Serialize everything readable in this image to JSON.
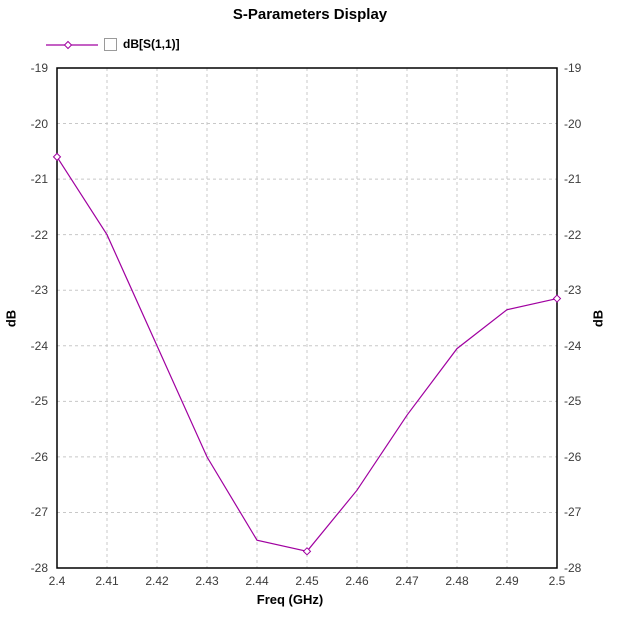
{
  "title": "S-Parameters Display",
  "legend": {
    "label": "dB[S(1,1)]",
    "checkbox_checked": false
  },
  "chart_data": {
    "type": "line",
    "title": "S-Parameters Display",
    "xlabel": "Freq (GHz)",
    "ylabel_left": "dB",
    "ylabel_right": "dB",
    "x": [
      2.4,
      2.41,
      2.42,
      2.43,
      2.44,
      2.45,
      2.46,
      2.47,
      2.48,
      2.49,
      2.5
    ],
    "series": [
      {
        "name": "dB[S(1,1)]",
        "values": [
          -20.6,
          -22.0,
          -24.0,
          -26.0,
          -27.5,
          -27.7,
          -26.6,
          -25.25,
          -24.05,
          -23.35,
          -23.15
        ],
        "color": "#a000a0",
        "marker": "diamond",
        "marker_indices": [
          0,
          5,
          10
        ]
      }
    ],
    "xlim": [
      2.4,
      2.5
    ],
    "ylim": [
      -28,
      -19
    ],
    "xticks": [
      "2.4",
      "2.41",
      "2.42",
      "2.43",
      "2.44",
      "2.45",
      "2.46",
      "2.47",
      "2.48",
      "2.49",
      "2.5"
    ],
    "yticks_left": [
      "-19",
      "-20",
      "-21",
      "-22",
      "-23",
      "-24",
      "-25",
      "-26",
      "-27",
      "-28"
    ],
    "yticks_right": [
      "-19",
      "-20",
      "-21",
      "-22",
      "-23",
      "-24",
      "-25",
      "-26",
      "-27",
      "-28"
    ],
    "grid": true,
    "grid_color": "#c8c8c8",
    "axis_color": "#000000",
    "legend_position": "top-left"
  }
}
